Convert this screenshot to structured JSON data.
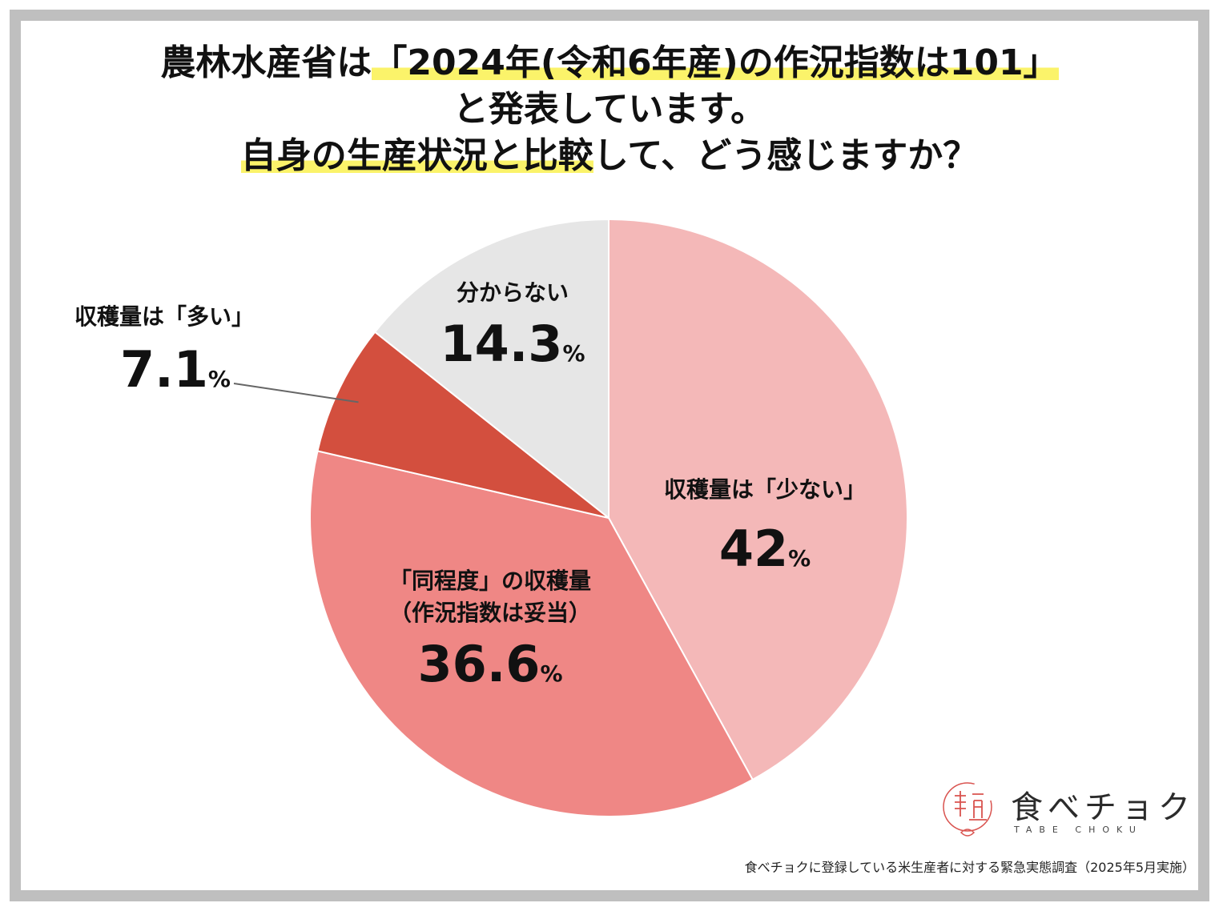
{
  "title": {
    "line1_prefix": "農林水産省は",
    "line1_highlight": "「2024年(令和6年産)の作況指数は101」",
    "line2": "と発表しています。",
    "line3_highlight": "自身の生産状況と比較",
    "line3_suffix": "して、どう感じますか？"
  },
  "chart_data": {
    "type": "pie",
    "start_angle_deg": 0,
    "direction": "clockwise",
    "slices": [
      {
        "key": "sukunai",
        "name_lines": [
          "収穫量は「少ない」"
        ],
        "value": 42,
        "value_text": "42",
        "unit": "%",
        "color": "#f4b8b8"
      },
      {
        "key": "doutei",
        "name_lines": [
          "「同程度」の収穫量",
          "（作況指数は妥当）"
        ],
        "value": 36.6,
        "value_text": "36.6",
        "unit": "%",
        "color": "#ef8785"
      },
      {
        "key": "ooi",
        "name_lines": [
          "収穫量は「多い」"
        ],
        "value": 7.1,
        "value_text": "7.1",
        "unit": "%",
        "color": "#d34f3e"
      },
      {
        "key": "wakaranai",
        "name_lines": [
          "分からない"
        ],
        "value": 14.3,
        "value_text": "14.3",
        "unit": "%",
        "color": "#e6e6e6"
      }
    ]
  },
  "logo": {
    "name": "食べチョク",
    "sub": "TABE CHOKU",
    "color": "#d9534f"
  },
  "source": "食べチョクに登録している米生産者に対する緊急実態調査（2025年5月実施）"
}
